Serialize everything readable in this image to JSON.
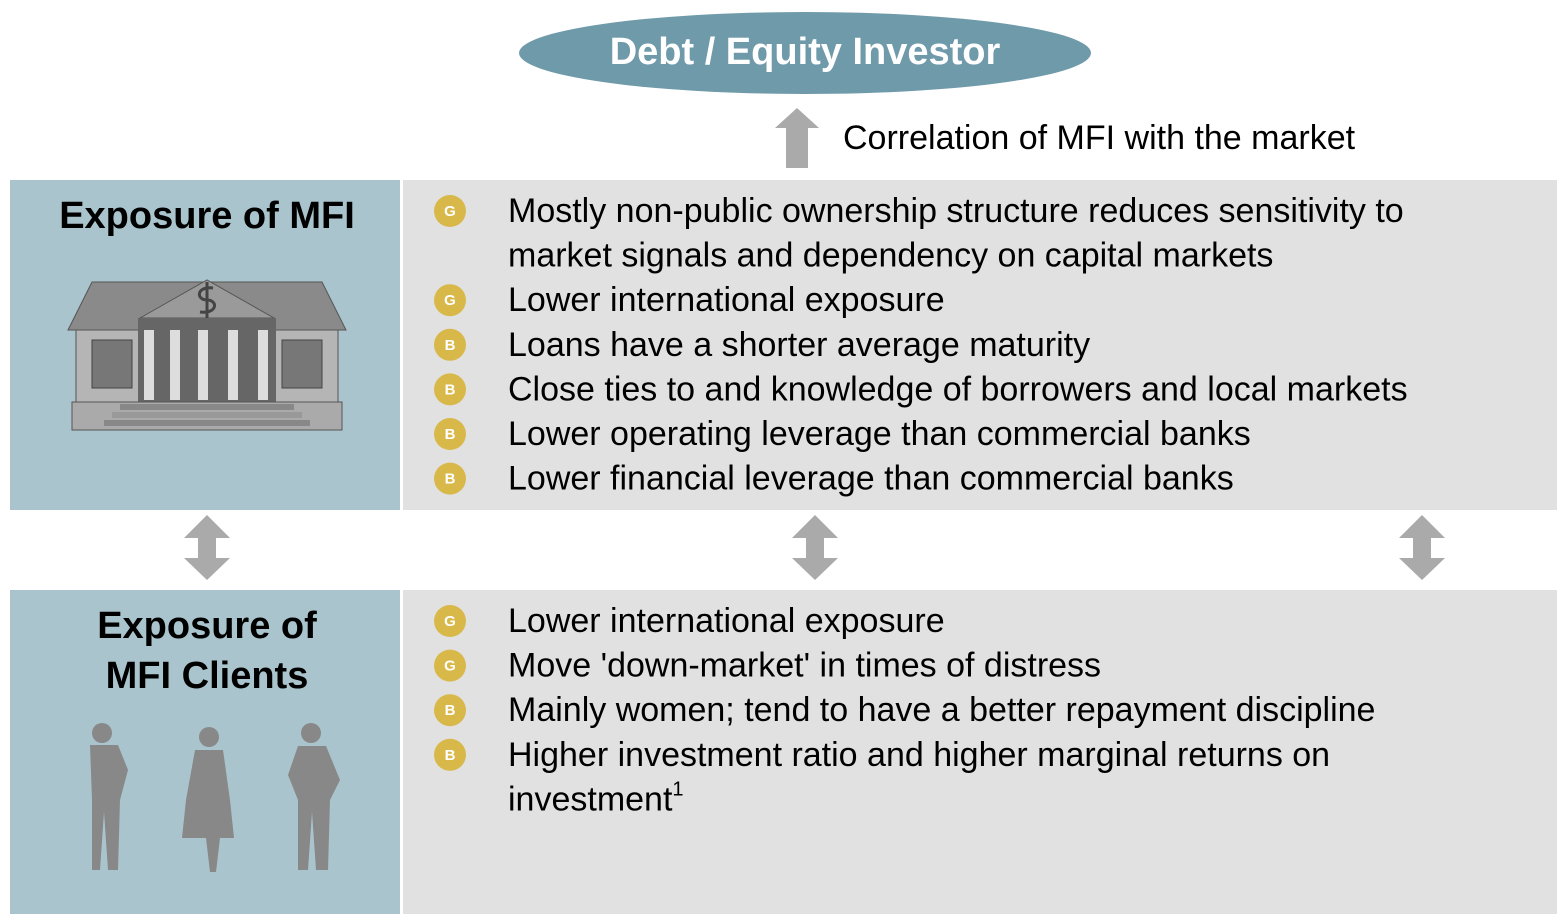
{
  "investor": "Debt / Equity Investor",
  "correlation": "Correlation of MFI with the market",
  "sections": [
    {
      "title_lines": [
        "Exposure of MFI"
      ],
      "items": [
        {
          "badge": "G",
          "lines": [
            "Mostly non-public ownership structure reduces sensitivity to",
            "market signals and dependency on capital markets"
          ]
        },
        {
          "badge": "G",
          "lines": [
            "Lower international exposure"
          ]
        },
        {
          "badge": "B",
          "lines": [
            "Loans have a shorter average maturity"
          ]
        },
        {
          "badge": "B",
          "lines": [
            "Close ties to and knowledge of  borrowers and local markets"
          ]
        },
        {
          "badge": "B",
          "lines": [
            "Lower operating leverage than commercial banks"
          ]
        },
        {
          "badge": "B",
          "lines": [
            "Lower financial leverage than commercial banks"
          ]
        }
      ]
    },
    {
      "title_lines": [
        "Exposure of",
        "MFI Clients"
      ],
      "items": [
        {
          "badge": "G",
          "lines": [
            "Lower international exposure"
          ]
        },
        {
          "badge": "G",
          "lines": [
            "Move 'down-market' in times of distress"
          ]
        },
        {
          "badge": "B",
          "lines": [
            "Mainly women; tend to have a better repayment discipline"
          ]
        },
        {
          "badge": "B",
          "lines": [
            "Higher investment ratio and higher marginal returns on",
            "investment"
          ],
          "footnote": "1"
        }
      ]
    }
  ]
}
